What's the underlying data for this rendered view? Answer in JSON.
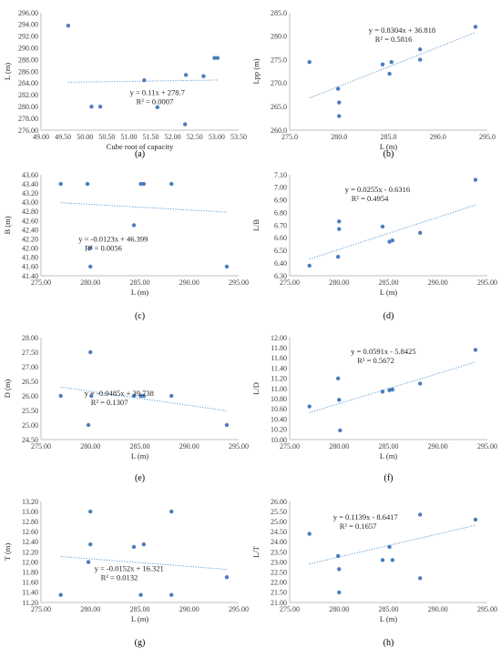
{
  "chart_data": [
    {
      "type": "scatter",
      "label": "(a)",
      "xlabel": "Cube root of capacity",
      "ylabel": "L (m)",
      "xlim": [
        49.0,
        53.5
      ],
      "xstep": 0.5,
      "xdec": 2,
      "ylim": [
        276.0,
        296.0
      ],
      "ystep": 2.0,
      "ydec": 2,
      "points": [
        [
          49.62,
          293.8
        ],
        [
          50.15,
          280.0
        ],
        [
          50.35,
          280.0
        ],
        [
          51.35,
          284.5
        ],
        [
          51.65,
          279.9
        ],
        [
          52.3,
          285.4
        ],
        [
          52.7,
          285.2
        ],
        [
          52.95,
          288.3
        ],
        [
          53.02,
          288.3
        ],
        [
          52.28,
          277.0
        ]
      ],
      "trendline": {
        "slope": 0.11,
        "intercept": 278.7
      },
      "equation": "y = 0.11x + 278.7",
      "r2": "R² = 0.0007"
    },
    {
      "type": "scatter",
      "label": "(b)",
      "xlabel": "L (m)",
      "ylabel": "Lpp (m)",
      "xlim": [
        275.0,
        295.0
      ],
      "xstep": 5.0,
      "xdec": 1,
      "ylim": [
        260.0,
        285.0
      ],
      "ystep": 5.0,
      "ydec": 1,
      "points": [
        [
          277.0,
          274.5
        ],
        [
          279.9,
          268.8
        ],
        [
          280.0,
          265.9
        ],
        [
          280.0,
          263.0
        ],
        [
          284.4,
          274.0
        ],
        [
          285.1,
          272.0
        ],
        [
          285.3,
          274.5
        ],
        [
          288.2,
          277.2
        ],
        [
          288.2,
          275.0
        ],
        [
          293.8,
          282.0
        ]
      ],
      "trendline": {
        "slope": 0.8304,
        "intercept": 36.818
      },
      "equation": "y = 0.8304x + 36.818",
      "r2": "R² = 0.5816"
    },
    {
      "type": "scatter",
      "label": "(c)",
      "xlabel": "L (m)",
      "ylabel": "B (m)",
      "xlim": [
        275.0,
        295.0
      ],
      "xstep": 5.0,
      "xdec": 2,
      "ylim": [
        41.4,
        43.6
      ],
      "ystep": 0.2,
      "ydec": 2,
      "points": [
        [
          277.0,
          43.4
        ],
        [
          279.7,
          43.4
        ],
        [
          280.0,
          42.0
        ],
        [
          280.0,
          41.6
        ],
        [
          284.4,
          42.5
        ],
        [
          285.1,
          43.4
        ],
        [
          285.4,
          43.4
        ],
        [
          288.2,
          43.4
        ],
        [
          293.8,
          41.6
        ]
      ],
      "trendline": {
        "slope": -0.0123,
        "intercept": 46.399
      },
      "equation": "y = -0.0123x + 46.399",
      "r2": "R² = 0.0056"
    },
    {
      "type": "scatter",
      "label": "(d)",
      "xlabel": "L (m)",
      "ylabel": "L/B",
      "xlim": [
        275.0,
        295.0
      ],
      "xstep": 5.0,
      "xdec": 2,
      "ylim": [
        6.3,
        7.1
      ],
      "ystep": 0.1,
      "ydec": 2,
      "points": [
        [
          277.0,
          6.38
        ],
        [
          279.9,
          6.45
        ],
        [
          280.0,
          6.67
        ],
        [
          280.0,
          6.73
        ],
        [
          284.4,
          6.69
        ],
        [
          285.1,
          6.57
        ],
        [
          285.4,
          6.58
        ],
        [
          288.2,
          6.64
        ],
        [
          293.8,
          7.06
        ]
      ],
      "trendline": {
        "slope": 0.0255,
        "intercept": -0.6316
      },
      "equation": "y = 0.0255x - 0.6316",
      "r2": "R² = 0.4954"
    },
    {
      "type": "scatter",
      "label": "(e)",
      "xlabel": "L (m)",
      "ylabel": "D (m)",
      "xlim": [
        275.0,
        295.0
      ],
      "xstep": 5.0,
      "xdec": 2,
      "ylim": [
        24.5,
        28.0
      ],
      "ystep": 0.5,
      "ydec": 2,
      "points": [
        [
          277.0,
          26.0
        ],
        [
          279.8,
          25.0
        ],
        [
          280.0,
          27.5
        ],
        [
          280.1,
          26.0
        ],
        [
          284.4,
          26.0
        ],
        [
          285.1,
          26.0
        ],
        [
          285.4,
          26.0
        ],
        [
          288.2,
          26.0
        ],
        [
          293.8,
          25.0
        ]
      ],
      "trendline": {
        "slope": -0.0485,
        "intercept": 39.738
      },
      "equation": "y = -0.0485x + 39.738",
      "r2": "R² = 0.1307"
    },
    {
      "type": "scatter",
      "label": "(f)",
      "xlabel": "L (m)",
      "ylabel": "L/D",
      "xlim": [
        275.0,
        295.0
      ],
      "xstep": 5.0,
      "xdec": 2,
      "ylim": [
        10.0,
        12.0
      ],
      "ystep": 0.2,
      "ydec": 2,
      "points": [
        [
          277.0,
          10.65
        ],
        [
          279.9,
          11.2
        ],
        [
          280.0,
          10.78
        ],
        [
          280.1,
          10.18
        ],
        [
          284.4,
          10.94
        ],
        [
          285.1,
          10.97
        ],
        [
          285.4,
          10.98
        ],
        [
          288.2,
          11.1
        ],
        [
          293.8,
          11.76
        ]
      ],
      "trendline": {
        "slope": 0.0591,
        "intercept": -5.8425
      },
      "equation": "y = 0.0591x - 5.8425",
      "r2": "R² = 0.5672"
    },
    {
      "type": "scatter",
      "label": "(g)",
      "xlabel": "L (m)",
      "ylabel": "T (m)",
      "xlim": [
        275.0,
        295.0
      ],
      "xstep": 5.0,
      "xdec": 2,
      "ylim": [
        11.2,
        13.2
      ],
      "ystep": 0.2,
      "ydec": 2,
      "points": [
        [
          277.0,
          11.35
        ],
        [
          279.8,
          12.0
        ],
        [
          280.0,
          13.0
        ],
        [
          280.0,
          12.35
        ],
        [
          284.4,
          12.3
        ],
        [
          285.1,
          11.35
        ],
        [
          285.4,
          12.35
        ],
        [
          288.2,
          13.0
        ],
        [
          288.2,
          11.35
        ],
        [
          293.8,
          11.7
        ]
      ],
      "trendline": {
        "slope": -0.0152,
        "intercept": 16.321
      },
      "equation": "y = -0.0152x + 16.321",
      "r2": "R² = 0.0132"
    },
    {
      "type": "scatter",
      "label": "(h)",
      "xlabel": "L (m)",
      "ylabel": "L/T",
      "xlim": [
        275.0,
        295.0
      ],
      "xstep": 5.0,
      "xdec": 2,
      "ylim": [
        21.0,
        26.0
      ],
      "ystep": 0.5,
      "ydec": 2,
      "points": [
        [
          277.0,
          24.4
        ],
        [
          279.9,
          23.3
        ],
        [
          280.0,
          22.65
        ],
        [
          280.0,
          21.5
        ],
        [
          284.4,
          23.1
        ],
        [
          285.1,
          23.75
        ],
        [
          285.4,
          23.1
        ],
        [
          288.2,
          25.35
        ],
        [
          288.2,
          22.2
        ],
        [
          293.8,
          25.1
        ]
      ],
      "trendline": {
        "slope": 0.1139,
        "intercept": -8.6417
      },
      "equation": "y = 0.1139x - 8.6417",
      "r2": "R² = 0.1657"
    }
  ]
}
